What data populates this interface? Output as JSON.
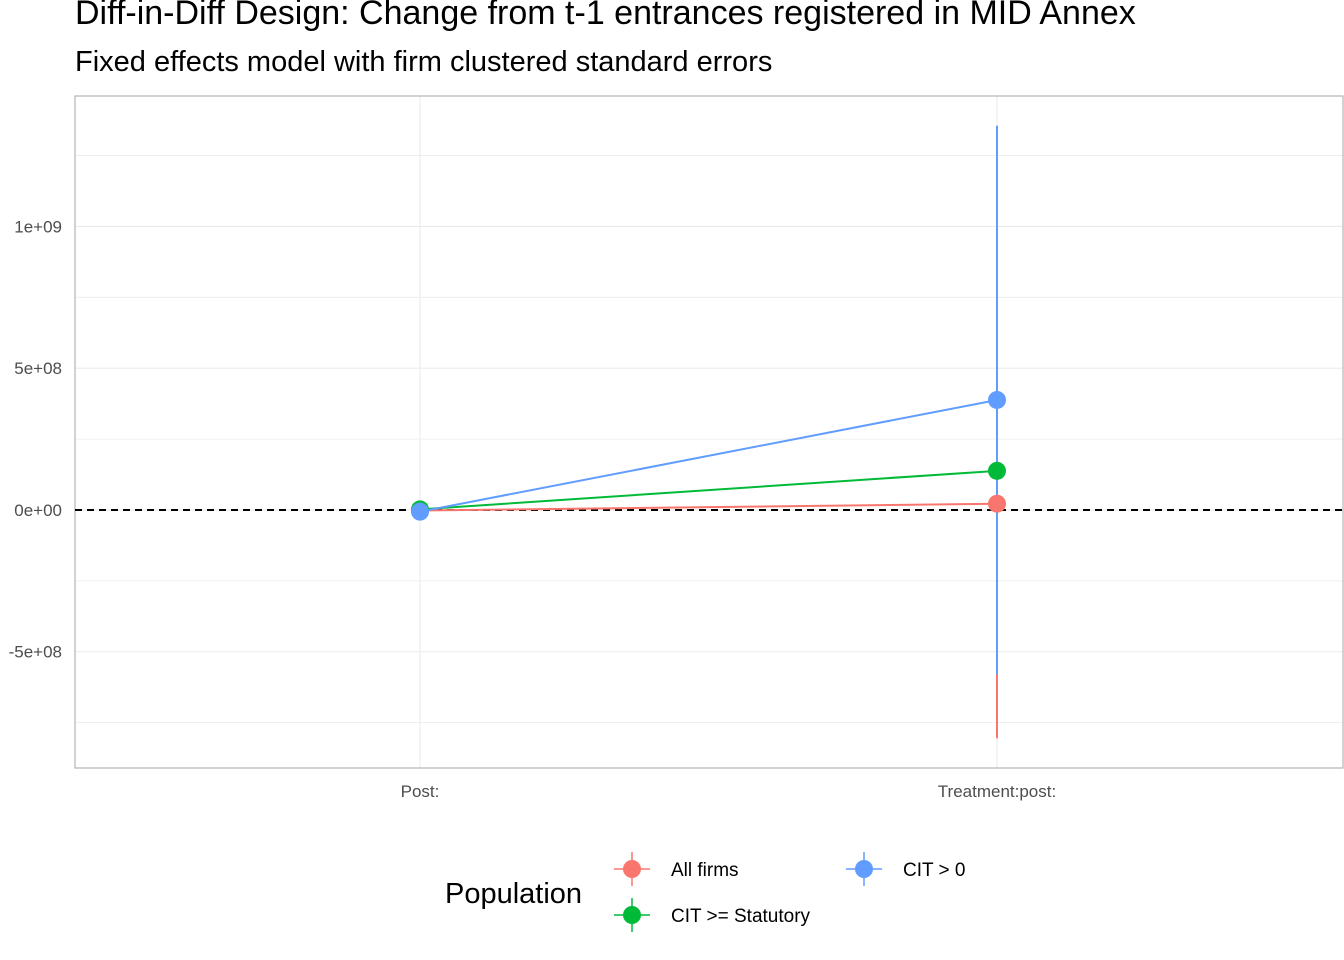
{
  "chart_data": {
    "type": "scatter",
    "title": "Diff-in-Diff Design: Change from t-1 entrances registered in MID Annex",
    "subtitle": "Fixed effects model with firm clustered standard errors",
    "categories": [
      "Post:",
      "Treatment:post:"
    ],
    "y_ticks": [
      {
        "value": -500000000,
        "label": "-5e+08"
      },
      {
        "value": 0,
        "label": "0e+00"
      },
      {
        "value": 500000000,
        "label": "5e+08"
      },
      {
        "value": 1000000000,
        "label": "1e+09"
      }
    ],
    "ylim": [
      -910000000,
      1460000000
    ],
    "reference_line": {
      "y": 0,
      "style": "dashed"
    },
    "legend": {
      "title": "Population",
      "position": "bottom"
    },
    "series": [
      {
        "name": "All firms",
        "color": "#F8766D",
        "points": [
          {
            "category": "Post:",
            "estimate": -2000000,
            "ci_low": -2000000,
            "ci_high": -2000000
          },
          {
            "category": "Treatment:post:",
            "estimate": 22000000,
            "ci_low": -805000000,
            "ci_high": 480000000
          }
        ]
      },
      {
        "name": "CIT >= Statutory",
        "color": "#00BA38",
        "points": [
          {
            "category": "Post:",
            "estimate": 2000000,
            "ci_low": 2000000,
            "ci_high": 2000000
          },
          {
            "category": "Treatment:post:",
            "estimate": 138000000,
            "ci_low": -570000000,
            "ci_high": 880000000
          }
        ]
      },
      {
        "name": "CIT > 0",
        "color": "#619CFF",
        "points": [
          {
            "category": "Post:",
            "estimate": -6000000,
            "ci_low": -6000000,
            "ci_high": -6000000
          },
          {
            "category": "Treatment:post:",
            "estimate": 388000000,
            "ci_low": -580000000,
            "ci_high": 1355000000
          }
        ]
      }
    ]
  }
}
